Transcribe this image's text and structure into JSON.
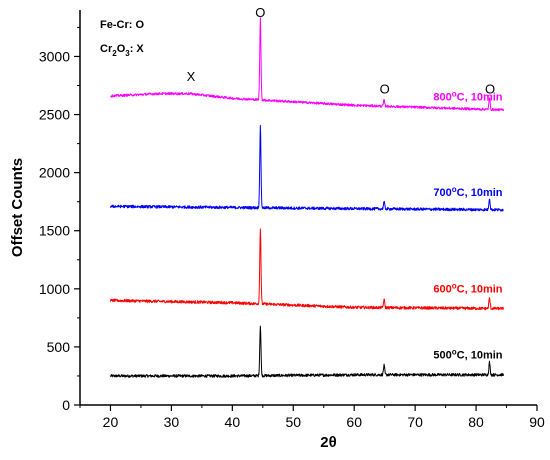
{
  "chart_data": {
    "type": "line",
    "title": "",
    "xlabel": "2θ",
    "ylabel": "Offset Counts",
    "xlim": [
      15,
      90
    ],
    "ylim": [
      0,
      3400
    ],
    "xticks": [
      20,
      30,
      40,
      50,
      60,
      70,
      80,
      90
    ],
    "yticks": [
      0,
      500,
      1000,
      1500,
      2000,
      2500,
      3000
    ],
    "grid": false,
    "legend": {
      "placement": "top-left",
      "entries": [
        {
          "label": "Fe-Cr: O"
        },
        {
          "label_main": "Cr",
          "label_sub": "2",
          "label_mid": "O",
          "label_sub2": "3",
          "label_tail": ": X"
        }
      ]
    },
    "x_range": [
      20,
      84.5
    ],
    "series": [
      {
        "name": "500°C, 10min",
        "color": "#000000",
        "baseline": [
          [
            20,
            250
          ],
          [
            40,
            250
          ],
          [
            60,
            260
          ],
          [
            84.5,
            260
          ]
        ],
        "noise": 12,
        "peaks": [
          {
            "x": 44.6,
            "height": 430
          },
          {
            "x": 64.9,
            "height": 80
          },
          {
            "x": 82.2,
            "height": 110
          }
        ]
      },
      {
        "name": "600°C, 10min",
        "color": "#ff0000",
        "baseline": [
          [
            20,
            900
          ],
          [
            40,
            880
          ],
          [
            60,
            840
          ],
          [
            84.5,
            830
          ]
        ],
        "noise": 12,
        "peaks": [
          {
            "x": 44.6,
            "height": 650
          },
          {
            "x": 64.9,
            "height": 70
          },
          {
            "x": 82.2,
            "height": 90
          }
        ]
      },
      {
        "name": "700°C, 10min",
        "color": "#0000ff",
        "baseline": [
          [
            20,
            1710
          ],
          [
            40,
            1700
          ],
          [
            60,
            1690
          ],
          [
            84.5,
            1680
          ]
        ],
        "noise": 12,
        "peaks": [
          {
            "x": 44.6,
            "height": 700
          },
          {
            "x": 64.9,
            "height": 60
          },
          {
            "x": 82.2,
            "height": 100
          }
        ]
      },
      {
        "name": "800°C, 10min",
        "color": "#ff00ff",
        "baseline": [
          [
            20,
            2660
          ],
          [
            28,
            2680
          ],
          [
            33,
            2680
          ],
          [
            40,
            2640
          ],
          [
            60,
            2580
          ],
          [
            84.5,
            2540
          ]
        ],
        "noise": 10,
        "peaks": [
          {
            "x": 44.6,
            "height": 700
          },
          {
            "x": 64.9,
            "height": 50
          },
          {
            "x": 82.2,
            "height": 100
          }
        ]
      }
    ],
    "annotations": [
      {
        "text": "O",
        "x": 44.6,
        "y": 3340
      },
      {
        "text": "X",
        "x": 33.2,
        "y": 2790
      },
      {
        "text": "O",
        "x": 65.0,
        "y": 2680
      },
      {
        "text": "O",
        "x": 82.3,
        "y": 2680
      }
    ],
    "series_labels": [
      {
        "text": "800°C, 10min",
        "x": 73,
        "y": 2620,
        "color": "#ff00ff"
      },
      {
        "text": "700°C, 10min",
        "x": 73,
        "y": 1800,
        "color": "#0000ff"
      },
      {
        "text": "600°C, 10min",
        "x": 73,
        "y": 970,
        "color": "#ff0000"
      },
      {
        "text": "500°C, 10min",
        "x": 73,
        "y": 400,
        "color": "#000000"
      }
    ]
  }
}
